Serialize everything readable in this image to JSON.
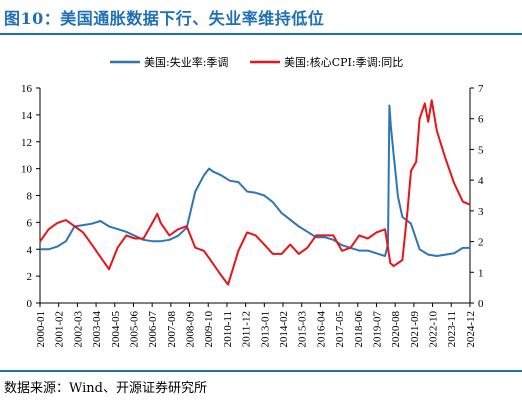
{
  "header": {
    "title": "图10：美国通胀数据下行、失业率维持低位"
  },
  "footer": {
    "source": "数据来源：Wind、开源证券研究所"
  },
  "colors": {
    "accent": "#1f6fb5",
    "unemployment": "#2e75b6",
    "cpi": "#e8141a"
  },
  "chart_data": {
    "type": "line",
    "legend_position": "top",
    "grid": false,
    "x_tick_labels": [
      "2000-01",
      "2001-02",
      "2002-03",
      "2003-04",
      "2004-05",
      "2005-06",
      "2006-07",
      "2007-08",
      "2008-09",
      "2009-10",
      "2010-11",
      "2011-12",
      "2013-01",
      "2014-02",
      "2015-03",
      "2016-04",
      "2017-05",
      "2018-06",
      "2019-07",
      "2020-08",
      "2021-09",
      "2022-10",
      "2023-11",
      "2024-12"
    ],
    "y_left": {
      "ticks": [
        "0",
        "2",
        "4",
        "6",
        "8",
        "10",
        "12",
        "14",
        "16"
      ],
      "range": [
        0,
        16
      ]
    },
    "y_right": {
      "ticks": [
        "0",
        "1",
        "2",
        "3",
        "4",
        "5",
        "6",
        "7"
      ],
      "range": [
        0,
        7
      ]
    },
    "series": [
      {
        "name": "美国:失业率:季调",
        "axis": "left",
        "color": "#2e75b6",
        "x": [
          2000.0,
          2000.5,
          2001.0,
          2001.5,
          2002.0,
          2002.5,
          2003.0,
          2003.5,
          2004.0,
          2004.5,
          2005.0,
          2005.5,
          2006.0,
          2006.5,
          2007.0,
          2007.5,
          2008.0,
          2008.5,
          2009.0,
          2009.5,
          2009.8,
          2010.0,
          2010.5,
          2011.0,
          2011.5,
          2012.0,
          2012.5,
          2013.0,
          2013.5,
          2014.0,
          2014.5,
          2015.0,
          2015.5,
          2016.0,
          2016.5,
          2017.0,
          2017.5,
          2018.0,
          2018.5,
          2019.0,
          2019.5,
          2020.0,
          2020.17,
          2020.25,
          2020.33,
          2020.5,
          2020.75,
          2021.0,
          2021.5,
          2022.0,
          2022.5,
          2023.0,
          2023.5,
          2024.0,
          2024.5,
          2024.92
        ],
        "y": [
          4.0,
          4.0,
          4.2,
          4.6,
          5.7,
          5.8,
          5.9,
          6.1,
          5.7,
          5.5,
          5.3,
          5.0,
          4.7,
          4.6,
          4.6,
          4.7,
          5.0,
          5.6,
          8.3,
          9.5,
          10.0,
          9.8,
          9.5,
          9.1,
          9.0,
          8.3,
          8.2,
          8.0,
          7.5,
          6.7,
          6.2,
          5.7,
          5.3,
          4.9,
          4.9,
          4.7,
          4.3,
          4.1,
          3.9,
          3.9,
          3.7,
          3.5,
          4.4,
          14.7,
          13.2,
          11.0,
          7.9,
          6.4,
          5.9,
          4.0,
          3.6,
          3.5,
          3.6,
          3.7,
          4.1,
          4.1
        ]
      },
      {
        "name": "美国:核心CPI:季调:同比",
        "axis": "right",
        "color": "#e8141a",
        "x": [
          2000.0,
          2000.5,
          2001.0,
          2001.5,
          2002.0,
          2002.5,
          2003.0,
          2003.5,
          2004.0,
          2004.5,
          2005.0,
          2005.5,
          2006.0,
          2006.5,
          2006.8,
          2007.0,
          2007.5,
          2008.0,
          2008.5,
          2009.0,
          2009.5,
          2010.0,
          2010.5,
          2010.9,
          2011.5,
          2012.0,
          2012.5,
          2013.0,
          2013.5,
          2014.0,
          2014.5,
          2015.0,
          2015.5,
          2016.0,
          2016.5,
          2017.0,
          2017.5,
          2018.0,
          2018.5,
          2019.0,
          2019.5,
          2020.0,
          2020.3,
          2020.5,
          2021.0,
          2021.3,
          2021.5,
          2021.8,
          2022.0,
          2022.3,
          2022.5,
          2022.7,
          2023.0,
          2023.5,
          2024.0,
          2024.5,
          2024.92
        ],
        "y": [
          2.0,
          2.4,
          2.6,
          2.7,
          2.5,
          2.3,
          1.9,
          1.5,
          1.1,
          1.8,
          2.2,
          2.1,
          2.1,
          2.6,
          2.9,
          2.6,
          2.2,
          2.4,
          2.5,
          1.8,
          1.7,
          1.3,
          0.9,
          0.6,
          1.7,
          2.3,
          2.2,
          1.9,
          1.6,
          1.6,
          1.9,
          1.6,
          1.8,
          2.2,
          2.2,
          2.2,
          1.7,
          1.8,
          2.2,
          2.1,
          2.3,
          2.4,
          1.3,
          1.2,
          1.4,
          3.0,
          4.3,
          4.6,
          6.0,
          6.5,
          5.9,
          6.6,
          5.6,
          4.7,
          3.9,
          3.3,
          3.2
        ]
      }
    ]
  }
}
